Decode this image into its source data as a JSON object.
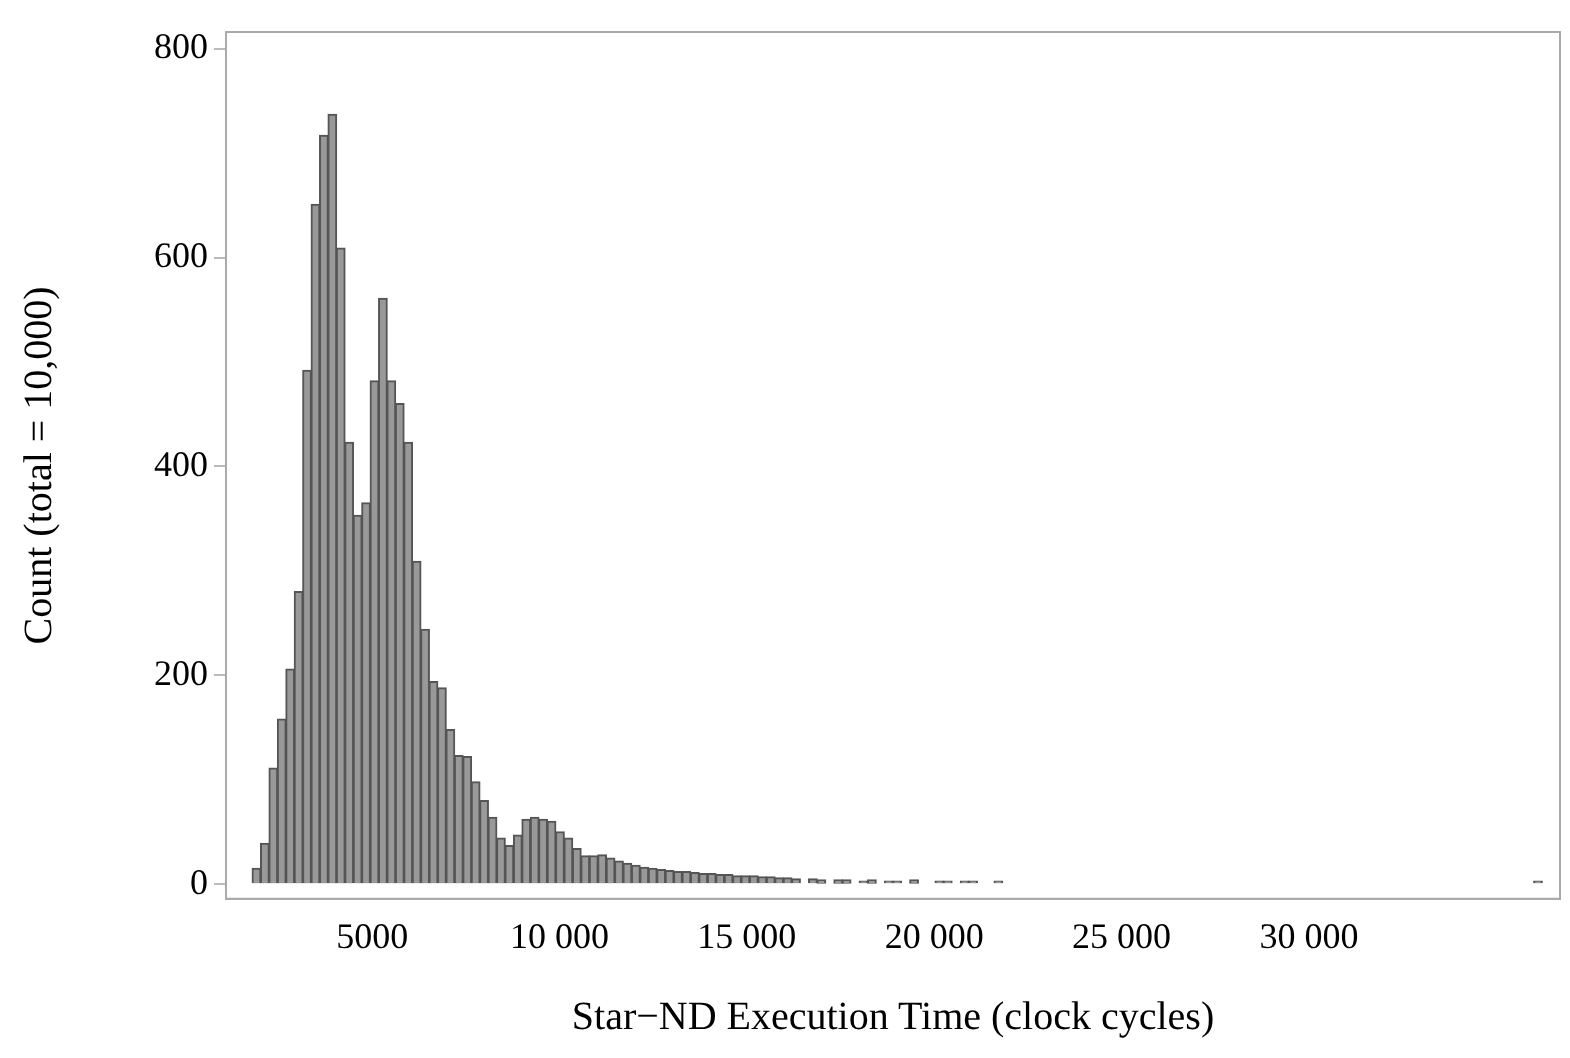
{
  "chart_data": {
    "type": "histogram",
    "xlabel": "Star−ND Execution Time (clock cycles)",
    "ylabel": "Count (total = 10,000)",
    "bins": [
      1800,
      2025,
      2250,
      2475,
      2700,
      2925,
      3150,
      3375,
      3600,
      3825,
      4050,
      4275,
      4500,
      4725,
      4950,
      5175,
      5400,
      5625,
      5850,
      6075,
      6300,
      6525,
      6750,
      6975,
      7200,
      7425,
      7650,
      7875,
      8100,
      8325,
      8550,
      8775,
      9000,
      9225,
      9450,
      9675,
      9900,
      10125,
      10350,
      10575,
      10800,
      11025,
      11250,
      11475,
      11700,
      11925,
      12150,
      12375,
      12600,
      12825,
      13050,
      13275,
      13500,
      13725,
      13950,
      14175,
      14400,
      14625,
      14850,
      15075,
      15300,
      15525,
      15750,
      15975,
      16200,
      16425,
      16650,
      16875,
      17100,
      17325,
      17550,
      17775,
      18000,
      18225,
      18450,
      18675,
      18900,
      19125,
      19350,
      19575,
      19800,
      20025,
      20250,
      20475,
      20700,
      20925,
      21150,
      21375,
      21600,
      21825,
      22050,
      22275,
      22500,
      22725,
      22950,
      23175,
      23400,
      23625,
      23850,
      24075,
      24300,
      24525,
      24750,
      24975,
      25200,
      25425,
      25650,
      25875,
      26100,
      26325,
      26550,
      26775,
      27000,
      27225,
      27450,
      27675,
      27900,
      28125,
      28350,
      28575,
      28800,
      29025,
      29250,
      29475,
      29700,
      29925,
      30150,
      30375,
      30600,
      30825,
      31050,
      31275,
      31500,
      31725,
      31950,
      32175,
      32400,
      32625,
      32850,
      33075,
      33300,
      33525,
      33750,
      33975,
      34200,
      34425,
      34650,
      34875,
      35100,
      35325,
      35550,
      35775,
      36000,
      36225
    ],
    "values": [
      15,
      39,
      111,
      158,
      206,
      280,
      492,
      651,
      717,
      737,
      609,
      423,
      353,
      365,
      482,
      561,
      482,
      460,
      423,
      309,
      244,
      194,
      188,
      148,
      123,
      122,
      98,
      80,
      64,
      44,
      37,
      47,
      62,
      64,
      62,
      60,
      50,
      44,
      34,
      27,
      27,
      28,
      25,
      22,
      20,
      18,
      16,
      15,
      14,
      13,
      12,
      12,
      11,
      10,
      10,
      9,
      9,
      8,
      8,
      8,
      7,
      7,
      6,
      6,
      5,
      0,
      5,
      4,
      0,
      4,
      4,
      0,
      3,
      4,
      0,
      3,
      3,
      0,
      4,
      0,
      0,
      3,
      3,
      0,
      3,
      3,
      0,
      0,
      3,
      0,
      0,
      0,
      0,
      0,
      0,
      0,
      0,
      0,
      0,
      0,
      0,
      0,
      0,
      0,
      0,
      0,
      0,
      0,
      0,
      0,
      0,
      0,
      0,
      0,
      0,
      0,
      0,
      0,
      0,
      0,
      0,
      0,
      0,
      0,
      0,
      0,
      0,
      0,
      0,
      0,
      0,
      0,
      0,
      0,
      0,
      0,
      0,
      0,
      0,
      0,
      0,
      0,
      0,
      0,
      0,
      0,
      0,
      0,
      0,
      0,
      0,
      0,
      3
    ],
    "color": "#999999",
    "xlim": [
      1100,
      36700
    ],
    "xticks": [
      5000,
      {
        "value": 10000,
        "label": "10 000"
      },
      {
        "value": 15000,
        "label": "15 000"
      },
      {
        "value": 20000,
        "label": "20 000"
      },
      {
        "value": 25000,
        "label": "25 000"
      },
      {
        "value": 30000,
        "label": "30 000"
      }
    ],
    "ylim": [
      -14,
      816
    ],
    "yticks": [
      0,
      200,
      400,
      600,
      800
    ],
    "grid": false,
    "legend": false
  }
}
